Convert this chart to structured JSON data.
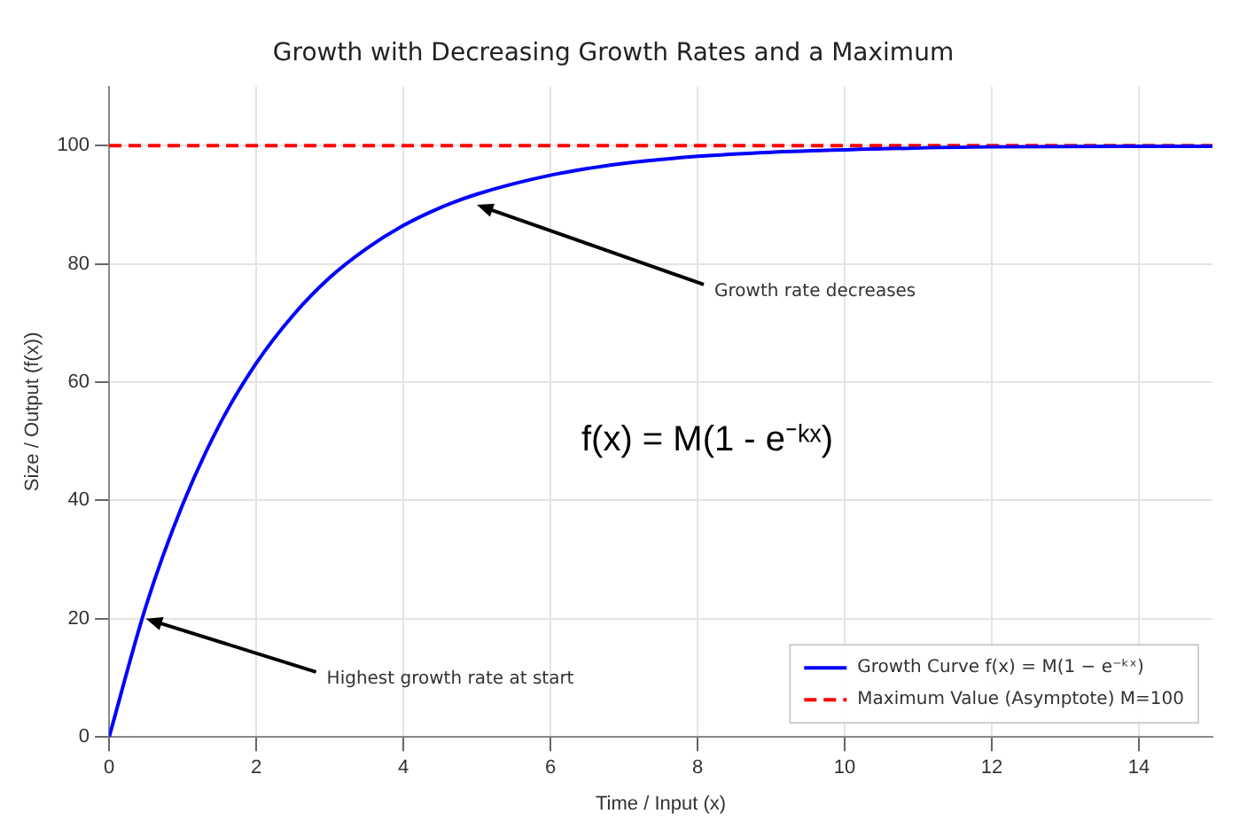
{
  "chart_data": {
    "type": "line",
    "title": "Growth with Decreasing Growth Rates and a Maximum",
    "xlabel": "Time / Input (x)",
    "ylabel": "Size / Output (f(x))",
    "x": [
      0,
      0.5,
      1,
      1.5,
      2,
      2.5,
      3,
      3.5,
      4,
      4.5,
      5,
      6,
      7,
      8,
      9,
      10,
      12,
      15
    ],
    "series": [
      {
        "name": "Growth Curve f(x) = M(1 − e⁻ᵏˣ)",
        "color": "#0000ff",
        "line_style": "solid",
        "values": [
          0,
          22.1,
          39.3,
          52.8,
          63.2,
          71.3,
          77.7,
          82.6,
          86.5,
          89.5,
          91.8,
          95.0,
          97.0,
          98.2,
          98.9,
          99.3,
          99.8,
          99.9
        ]
      },
      {
        "name": "Maximum Value (Asymptote) M=100",
        "color": "#ff0000",
        "line_style": "dashed",
        "x": [
          0,
          15
        ],
        "values": [
          100,
          100
        ]
      }
    ],
    "xlim": [
      0,
      15
    ],
    "xticks": [
      0,
      2,
      4,
      6,
      8,
      10,
      12,
      14
    ],
    "ylim": [
      0,
      110
    ],
    "yticks": [
      0,
      20,
      40,
      60,
      80,
      100
    ],
    "grid": true,
    "legend": "bottom right",
    "marker": "none",
    "annotations": [
      {
        "text": "Growth rate decreases",
        "x": 5,
        "y": 90
      },
      {
        "text": "Highest growth rate at start",
        "x": 0.5,
        "y": 20
      },
      "f(x) = M(1 - e⁻ᵏˣ)"
    ]
  }
}
